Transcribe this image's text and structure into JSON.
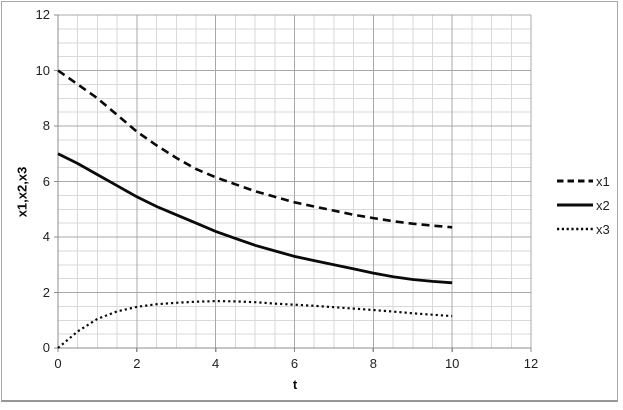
{
  "chart_data": {
    "type": "line",
    "title": "",
    "xlabel": "t",
    "ylabel": "x1,x2,x3",
    "xlim": [
      0,
      12
    ],
    "ylim": [
      0,
      12
    ],
    "xticks": [
      0,
      2,
      4,
      6,
      8,
      10,
      12
    ],
    "yticks": [
      0,
      2,
      4,
      6,
      8,
      10,
      12
    ],
    "minor_grid_step": 0.5,
    "grid": "on",
    "legend_position": "right",
    "x": [
      0,
      0.5,
      1,
      1.5,
      2,
      2.5,
      3,
      3.5,
      4,
      4.5,
      5,
      5.5,
      6,
      6.5,
      7,
      7.5,
      8,
      8.5,
      9,
      9.5,
      10
    ],
    "series": [
      {
        "name": "x1",
        "style": "dashed",
        "color": "#000000",
        "values": [
          10,
          9.5,
          9.0,
          8.4,
          7.8,
          7.3,
          6.85,
          6.45,
          6.15,
          5.9,
          5.65,
          5.45,
          5.25,
          5.1,
          4.95,
          4.8,
          4.68,
          4.57,
          4.48,
          4.41,
          4.35
        ]
      },
      {
        "name": "x2",
        "style": "solid",
        "color": "#000000",
        "values": [
          7,
          6.65,
          6.25,
          5.85,
          5.45,
          5.1,
          4.8,
          4.5,
          4.2,
          3.95,
          3.7,
          3.5,
          3.3,
          3.15,
          3.0,
          2.85,
          2.7,
          2.57,
          2.47,
          2.4,
          2.35
        ]
      },
      {
        "name": "x3",
        "style": "dotted",
        "color": "#000000",
        "values": [
          0,
          0.6,
          1.05,
          1.32,
          1.48,
          1.58,
          1.63,
          1.67,
          1.69,
          1.68,
          1.65,
          1.6,
          1.56,
          1.52,
          1.47,
          1.42,
          1.37,
          1.31,
          1.25,
          1.2,
          1.15
        ]
      }
    ],
    "colors": {
      "minor_grid": "#d9d9d9",
      "major_grid": "#a8a8a8",
      "axis_line": "#8c8c8c",
      "curve": "#0a0a0a",
      "text": "#1f1f1f"
    }
  }
}
